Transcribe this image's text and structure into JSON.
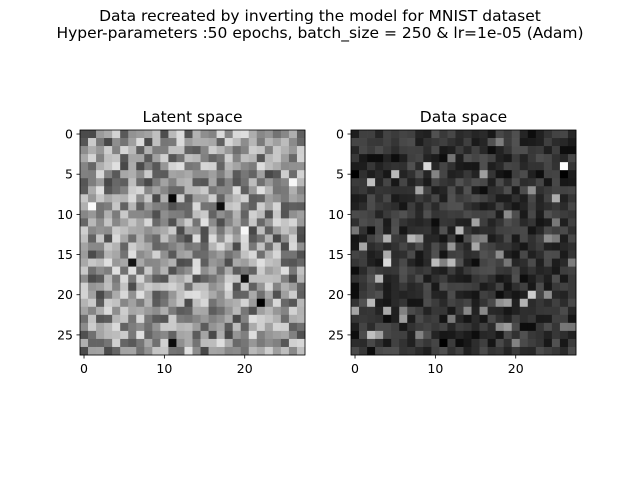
{
  "figure": {
    "suptitle_line1": "Data recreated by inverting the model for MNIST dataset",
    "suptitle_line2": "Hyper-parameters :50 epochs, batch_size = 250 & lr=1e-05 (Adam)"
  },
  "chart_data": [
    {
      "type": "heatmap",
      "title": "Latent space",
      "colormap": "gray",
      "shape": [
        28,
        28
      ],
      "xlim": [
        -0.5,
        27.5
      ],
      "ylim": [
        27.5,
        -0.5
      ],
      "xticks": [
        0,
        10,
        20
      ],
      "yticks": [
        0,
        5,
        10,
        15,
        20,
        25
      ],
      "value_range": [
        0,
        1
      ],
      "cell_values": "28x28 grid of gray intensities, mostly mid-gray (mean ~0.58) with scattered dark and light pixels",
      "marked_cells": [
        {
          "row": 8,
          "col": 11,
          "value": 0.02
        },
        {
          "row": 9,
          "col": 17,
          "value": 0.05
        },
        {
          "row": 21,
          "col": 22,
          "value": 0.0
        },
        {
          "row": 26,
          "col": 11,
          "value": 0.05
        },
        {
          "row": 18,
          "col": 20,
          "value": 0.06
        },
        {
          "row": 16,
          "col": 6,
          "value": 0.08
        },
        {
          "row": 9,
          "col": 1,
          "value": 0.98
        },
        {
          "row": 6,
          "col": 26,
          "value": 0.97
        },
        {
          "row": 12,
          "col": 20,
          "value": 0.97
        }
      ]
    },
    {
      "type": "heatmap",
      "title": "Data space",
      "colormap": "gray",
      "shape": [
        28,
        28
      ],
      "xlim": [
        -0.5,
        27.5
      ],
      "ylim": [
        27.5,
        -0.5
      ],
      "xticks": [
        0,
        10,
        20
      ],
      "yticks": [
        0,
        5,
        10,
        15,
        20,
        25
      ],
      "value_range": [
        0,
        1
      ],
      "cell_values": "28x28 grid of gray intensities, mostly dark (mean ~0.20) with scattered brighter pixels",
      "marked_cells": [
        {
          "row": 5,
          "col": 0,
          "value": 0.0
        },
        {
          "row": 5,
          "col": 26,
          "value": 0.0
        },
        {
          "row": 4,
          "col": 26,
          "value": 1.0
        },
        {
          "row": 26,
          "col": 11,
          "value": 0.0
        },
        {
          "row": 16,
          "col": 4,
          "value": 0.85
        },
        {
          "row": 4,
          "col": 9,
          "value": 0.85
        },
        {
          "row": 20,
          "col": 22,
          "value": 0.8
        },
        {
          "row": 21,
          "col": 2,
          "value": 0.72
        },
        {
          "row": 14,
          "col": 1,
          "value": 0.65
        }
      ]
    }
  ]
}
